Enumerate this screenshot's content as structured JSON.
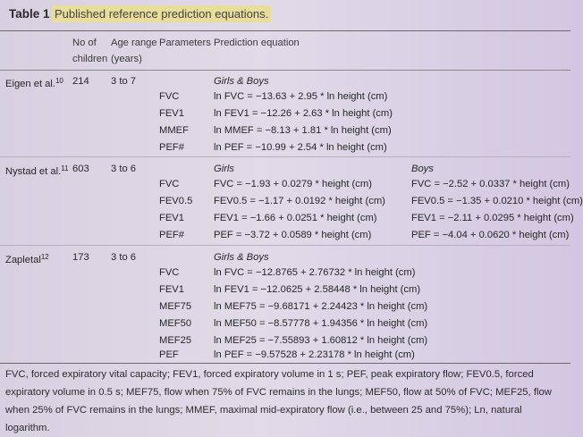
{
  "table": {
    "label": "Table 1",
    "caption": "Published reference prediction equations."
  },
  "headers": {
    "no_children_1": "No of",
    "no_children_2": "children",
    "age_range_1": "Age range",
    "age_range_2": "(years)",
    "parameters": "Parameters",
    "equation": "Prediction equation"
  },
  "eigen": {
    "study": "Eigen et al.",
    "ref": "10",
    "n": "214",
    "age": "3 to 7",
    "group": "Girls & Boys",
    "rows": [
      {
        "p": "FVC",
        "eq": "ln FVC = −13.63 + 2.95 * ln height (cm)"
      },
      {
        "p": "FEV1",
        "eq": "ln FEV1 = −12.26 + 2.63 * ln height (cm)"
      },
      {
        "p": "MMEF",
        "eq": "ln MMEF = −8.13 + 1.81 * ln height (cm)"
      },
      {
        "p": "PEF#",
        "eq": "ln PEF = −10.99 + 2.54 * ln height (cm)"
      }
    ]
  },
  "nystad": {
    "study": "Nystad et al.",
    "ref": "11",
    "n": "603",
    "age": "3 to 6",
    "group_girls": "Girls",
    "group_boys": "Boys",
    "rows": [
      {
        "p": "FVC",
        "girls": "FVC = −1.93 + 0.0279 * height (cm)",
        "boys": "FVC = −2.52 + 0.0337 * height (cm)"
      },
      {
        "p": "FEV0.5",
        "girls": "FEV0.5 = −1.17 + 0.0192 * height (cm)",
        "boys": "FEV0.5 = −1.35 + 0.0210 * height (cm)"
      },
      {
        "p": "FEV1",
        "girls": "FEV1 = −1.66 + 0.0251 * height (cm)",
        "boys": "FEV1 = −2.11 + 0.0295 * height (cm)"
      },
      {
        "p": "PEF#",
        "girls": "PEF = −3.72 + 0.0589 * height (cm)",
        "boys": "PEF = −4.04 + 0.0620 * height (cm)"
      }
    ]
  },
  "zapletal": {
    "study": "Zapletal",
    "ref": "12",
    "n": "173",
    "age": "3 to 6",
    "group": "Girls & Boys",
    "rows": [
      {
        "p": "FVC",
        "eq": "ln FVC = −12.8765 + 2.76732 * ln height (cm)"
      },
      {
        "p": "FEV1",
        "eq": "ln FEV1 = −12.0625 + 2.58448 * ln height (cm)"
      },
      {
        "p": "MEF75",
        "eq": "ln MEF75 = −9.68171 + 2.24423 * ln height (cm)"
      },
      {
        "p": "MEF50",
        "eq": "ln MEF50 = −8.57778 + 1.94356 * ln height (cm)"
      },
      {
        "p": "MEF25",
        "eq": "ln MEF25 = −7.55893 + 1.60812 * ln height (cm)"
      },
      {
        "p": "PEF",
        "eq": "ln PEF = −9.57528 + 2.23178 * ln height (cm)"
      }
    ]
  },
  "footnote": "FVC, forced expiratory vital capacity; FEV1, forced expiratory volume in 1 s; PEF, peak expiratory flow; FEV0.5, forced expiratory volume in 0.5 s; MEF75, flow when 75% of FVC remains in the lungs; MEF50, flow at 50% of FVC; MEF25, flow when 25% of FVC remains in the lungs; MMEF, maximal mid-expiratory flow (i.e., between 25 and 75%); Ln, natural logarithm."
}
